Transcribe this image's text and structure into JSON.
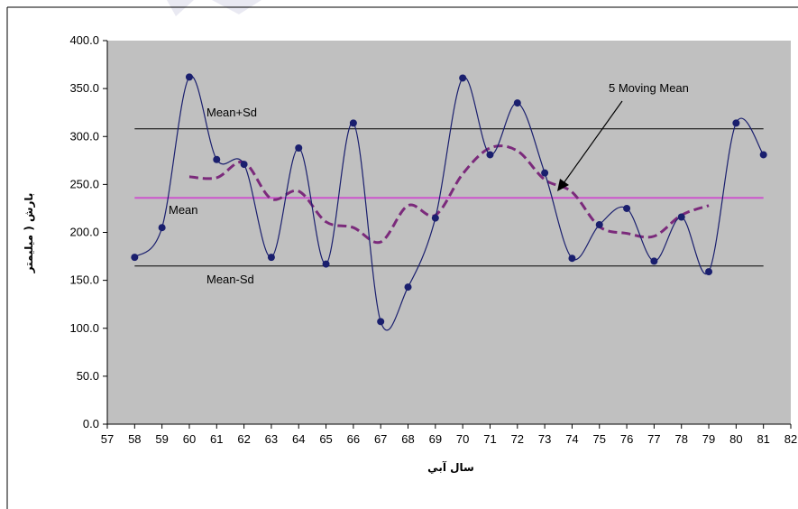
{
  "chart_data": {
    "type": "line",
    "title": "",
    "xlabel": "سال آبي",
    "ylabel": "بارش ( ميليمتر",
    "xlim": [
      57,
      82
    ],
    "ylim": [
      0,
      400
    ],
    "x_ticks": [
      "57",
      "58",
      "59",
      "60",
      "61",
      "62",
      "63",
      "64",
      "65",
      "66",
      "67",
      "68",
      "69",
      "70",
      "71",
      "72",
      "73",
      "74",
      "75",
      "76",
      "77",
      "78",
      "79",
      "80",
      "81",
      "82"
    ],
    "y_ticks": [
      "0.0",
      "50.0",
      "100.0",
      "150.0",
      "200.0",
      "250.0",
      "300.0",
      "350.0",
      "400.0"
    ],
    "grid": false,
    "plot_background": "#c0c0c0",
    "series": [
      {
        "kind": "observed",
        "color": "#1a1f6e",
        "x": [
          58,
          59,
          60,
          61,
          62,
          63,
          64,
          65,
          66,
          67,
          68,
          69,
          70,
          71,
          72,
          73,
          74,
          75,
          76,
          77,
          78,
          79,
          80,
          81
        ],
        "values": [
          174,
          205,
          362,
          276,
          271,
          174,
          288,
          167,
          314,
          107,
          143,
          215,
          361,
          281,
          335,
          262,
          173,
          208,
          225,
          170,
          216,
          159,
          314,
          281
        ]
      },
      {
        "kind": "moving_mean",
        "color": "#7b2a7b",
        "x": [
          60,
          61,
          62,
          63,
          64,
          65,
          66,
          67,
          68,
          69,
          70,
          71,
          72,
          73,
          74,
          75,
          76,
          77,
          78,
          79
        ],
        "values": [
          258,
          257,
          273,
          235,
          243,
          211,
          205,
          190,
          228,
          218,
          261,
          288,
          285,
          255,
          242,
          206,
          199,
          196,
          218,
          228
        ]
      }
    ],
    "reference_lines": [
      {
        "name": "Mean+Sd",
        "value": 308,
        "color": "#000000"
      },
      {
        "name": "Mean",
        "value": 236,
        "color": "#cc55cc"
      },
      {
        "name": "Mean-Sd",
        "value": 165,
        "color": "#000000"
      }
    ],
    "annotations": {
      "mean_plus_sd": "Mean+Sd",
      "mean": "Mean",
      "mean_minus_sd": "Mean-Sd",
      "moving_mean": "5 Moving Mean"
    }
  }
}
